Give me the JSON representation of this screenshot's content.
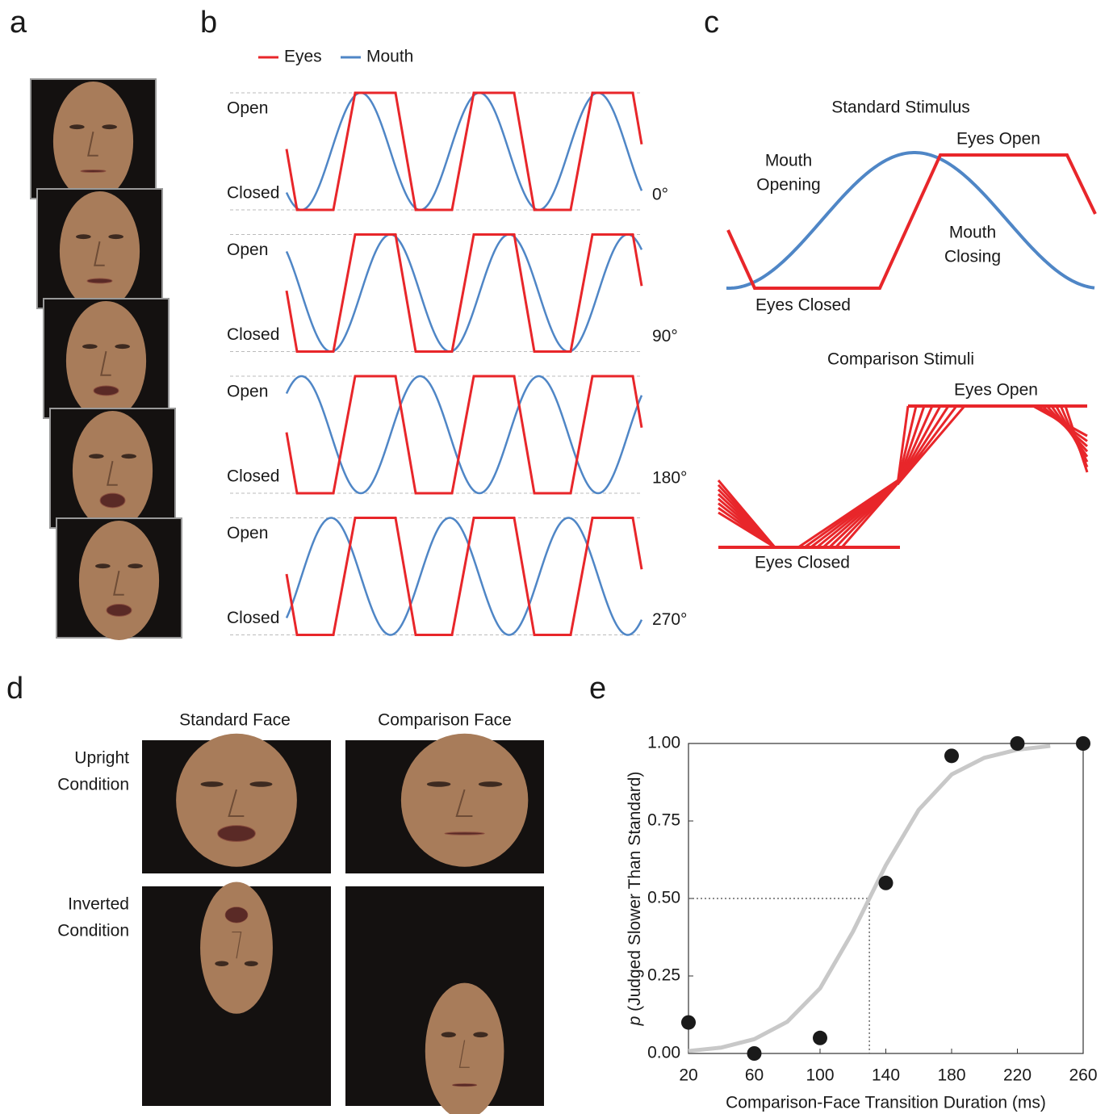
{
  "panel_labels": [
    "a",
    "b",
    "c",
    "d",
    "e"
  ],
  "panel_b": {
    "legend": [
      {
        "name": "Eyes",
        "color": "#e8262a"
      },
      {
        "name": "Mouth",
        "color": "#4f86c6"
      }
    ],
    "open_label": "Open",
    "closed_label": "Closed",
    "phases": [
      "0°",
      "90°",
      "180°",
      "270°"
    ]
  },
  "panel_c": {
    "standard_title": "Standard Stimulus",
    "mouth_opening": [
      "Mouth",
      "Opening"
    ],
    "mouth_closing": [
      "Mouth",
      "Closing"
    ],
    "eyes_open": "Eyes Open",
    "eyes_closed": "Eyes Closed",
    "comparison_title": "Comparison Stimuli"
  },
  "panel_d": {
    "columns": [
      "Standard Face",
      "Comparison Face"
    ],
    "rows": [
      [
        "Upright",
        "Condition"
      ],
      [
        "Inverted",
        "Condition"
      ]
    ]
  },
  "chart_data": {
    "type": "scatter",
    "xlabel": "Comparison-Face Transition Duration (ms)",
    "ylabel_italic": "p",
    "ylabel": "(Judged Slower Than Standard)",
    "x": [
      20,
      60,
      100,
      140,
      180,
      220,
      260
    ],
    "values": [
      0.1,
      0.0,
      0.05,
      0.55,
      0.96,
      1.0,
      1.0
    ],
    "color": "#1a1a1a",
    "fit": {
      "color": "#c8c8c8",
      "x": [
        20,
        40,
        60,
        80,
        100,
        120,
        140,
        160,
        180,
        200,
        220,
        240
      ],
      "values": [
        0.008,
        0.019,
        0.046,
        0.102,
        0.21,
        0.393,
        0.607,
        0.786,
        0.9,
        0.954,
        0.98,
        0.992
      ]
    },
    "threshold": {
      "x": 130,
      "y": 0.5
    },
    "xlim": [
      20,
      260
    ],
    "ylim": [
      0,
      1
    ],
    "xticks": [
      20,
      60,
      100,
      140,
      180,
      220,
      260
    ],
    "yticks": [
      {
        "value": 0,
        "label": "0.00"
      },
      {
        "value": 0.25,
        "label": "0.25"
      },
      {
        "value": 0.5,
        "label": "0.50"
      },
      {
        "value": 0.75,
        "label": "0.75"
      },
      {
        "value": 1,
        "label": "1.00"
      }
    ]
  }
}
